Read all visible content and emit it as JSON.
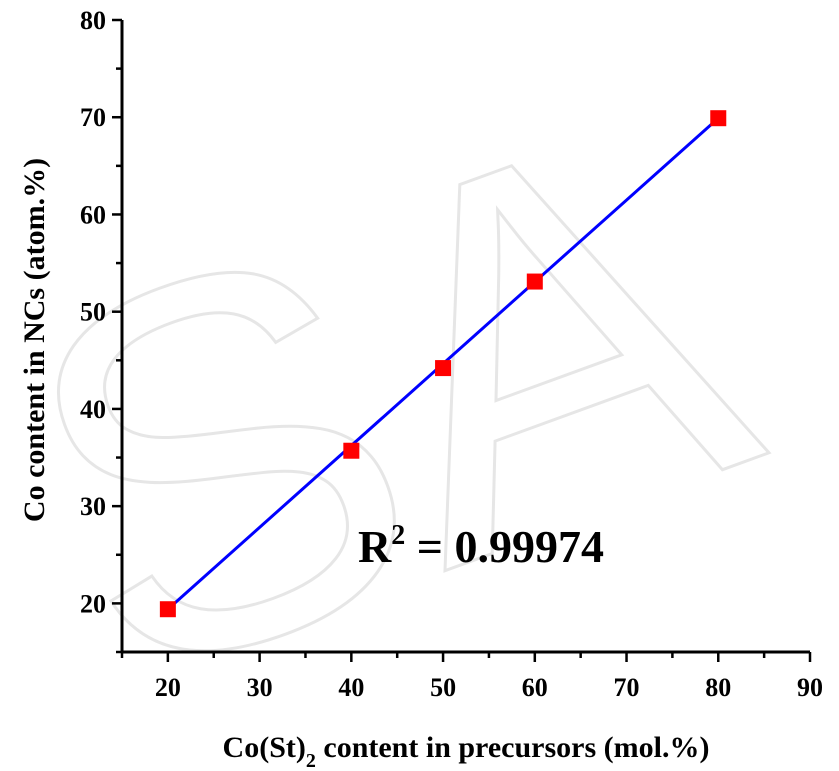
{
  "chart_data": {
    "type": "scatter",
    "xlabel_main": "Co(St)",
    "xlabel_sub": "2",
    "xlabel_rest": " content in precursors (mol.%)",
    "ylabel": "Co content in NCs (atom.%)",
    "xlim": [
      15,
      90
    ],
    "ylim": [
      15,
      80
    ],
    "xticks": [
      20,
      30,
      40,
      50,
      60,
      70,
      80,
      90
    ],
    "yticks": [
      20,
      30,
      40,
      50,
      60,
      70,
      80
    ],
    "series": [
      {
        "x": [
          20,
          40,
          50,
          60,
          80
        ],
        "y": [
          19.4,
          35.7,
          44.2,
          53.1,
          69.9
        ],
        "marker": "square",
        "color": "#ff0000"
      }
    ],
    "fit": {
      "x": [
        20,
        80
      ],
      "y": [
        19.4,
        69.9
      ],
      "color": "#0000ff"
    },
    "annotation": {
      "prefix": "R",
      "sup": "2",
      "suffix": " = 0.99974"
    },
    "grid": false,
    "watermark": "SA"
  }
}
